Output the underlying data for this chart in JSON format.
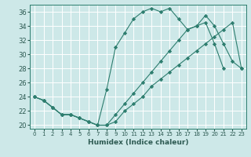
{
  "xlabel": "Humidex (Indice chaleur)",
  "background_color": "#cde8e8",
  "grid_color": "#ffffff",
  "line_color": "#2d7d6e",
  "xlim": [
    -0.5,
    23.5
  ],
  "ylim": [
    19.5,
    37.0
  ],
  "yticks": [
    20,
    22,
    24,
    26,
    28,
    30,
    32,
    34,
    36
  ],
  "xticks": [
    0,
    1,
    2,
    3,
    4,
    5,
    6,
    7,
    8,
    9,
    10,
    11,
    12,
    13,
    14,
    15,
    16,
    17,
    18,
    19,
    20,
    21,
    22,
    23
  ],
  "series1_x": [
    0,
    1,
    2,
    3,
    4,
    5,
    6,
    7,
    8,
    9,
    10,
    11,
    12,
    13,
    14,
    15,
    16,
    17,
    18,
    19,
    20,
    21,
    22
  ],
  "series1_y": [
    24,
    23.5,
    22.5,
    21.5,
    21.5,
    21,
    20.5,
    20,
    25,
    31,
    33,
    35,
    36,
    36.5,
    36,
    36.5,
    35,
    33.5,
    34,
    34.5,
    31.5,
    28,
    null
  ],
  "series2_x": [
    0,
    1,
    2,
    3,
    4,
    5,
    6,
    7,
    8,
    9,
    10,
    11,
    12,
    13,
    14,
    15,
    16,
    17,
    18,
    19,
    20,
    21,
    22,
    23
  ],
  "series2_y": [
    24,
    23.5,
    22.5,
    21.5,
    21.5,
    21,
    20.5,
    20,
    20,
    21.5,
    23,
    24.5,
    26,
    27.5,
    29,
    30.5,
    32,
    33.5,
    34,
    35.5,
    34,
    31.5,
    29,
    28
  ],
  "series3_x": [
    0,
    1,
    2,
    3,
    4,
    5,
    6,
    7,
    8,
    9,
    10,
    11,
    12,
    13,
    14,
    15,
    16,
    17,
    18,
    19,
    20,
    21,
    22,
    23
  ],
  "series3_y": [
    24,
    23.5,
    22.5,
    21.5,
    21.5,
    21,
    20.5,
    20,
    20,
    20.5,
    22,
    23,
    24,
    25.5,
    26.5,
    27.5,
    28.5,
    29.5,
    30.5,
    31.5,
    32.5,
    33.5,
    34.5,
    28
  ]
}
